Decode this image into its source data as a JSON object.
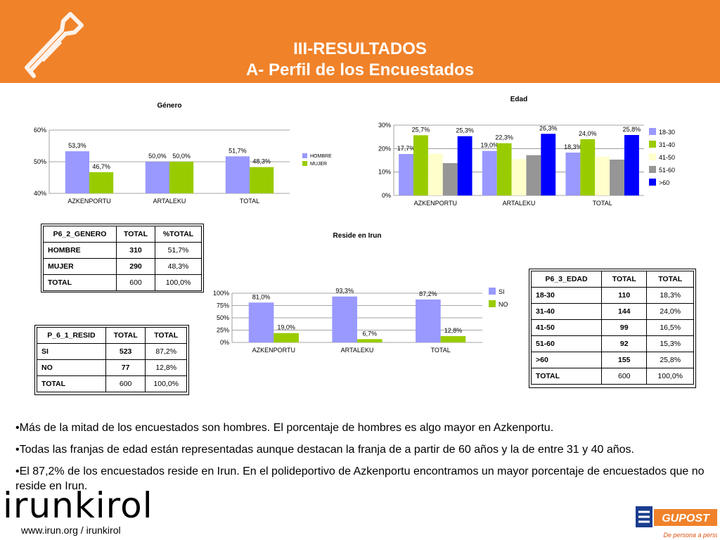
{
  "header": {
    "title_line1": "III-RESULTADOS",
    "title_line2": "A- Perfil de los Encuestados",
    "bg_color": "#f0822a"
  },
  "chart_data": [
    {
      "type": "bar",
      "title": "Género",
      "categories": [
        "AZKENPORTU",
        "ARTALEKU",
        "TOTAL"
      ],
      "series": [
        {
          "name": "HOMBRE",
          "values": [
            53.3,
            50.0,
            51.7
          ],
          "labels": [
            "53,3%",
            "50,0%",
            "51,7%"
          ],
          "color": "#9999ff"
        },
        {
          "name": "MUJER",
          "values": [
            46.7,
            50.0,
            48.3
          ],
          "labels": [
            "46,7%",
            "50,0%",
            "48,3%"
          ],
          "color": "#99cc00"
        }
      ],
      "ylim": [
        40,
        60
      ],
      "yticks": [
        "40%",
        "50%",
        "60%"
      ],
      "grid": true,
      "legend": "right"
    },
    {
      "type": "bar",
      "title": "Edad",
      "categories": [
        "AZKENPORTU",
        "ARTALEKU",
        "TOTAL"
      ],
      "series": [
        {
          "name": "18-30",
          "values": [
            17.7,
            19.0,
            18.3
          ],
          "labels": [
            "17,7%",
            "19,0%",
            "18,3%"
          ],
          "color": "#9999ff"
        },
        {
          "name": "31-40",
          "values": [
            25.7,
            22.3,
            24.0
          ],
          "labels": [
            "25,7%",
            "22,3%",
            "24,0%"
          ],
          "color": "#99cc00"
        },
        {
          "name": "41-50",
          "values": [
            17.8,
            15.5,
            16.5
          ],
          "labels": [
            "",
            "",
            ""
          ],
          "color": "#ffffcc"
        },
        {
          "name": "51-60",
          "values": [
            13.8,
            17.2,
            15.3
          ],
          "labels": [
            "",
            "",
            ""
          ],
          "color": "#969696"
        },
        {
          "name": ">60",
          "values": [
            25.3,
            26.3,
            25.8
          ],
          "labels": [
            "25,3%",
            "26,3%",
            "25,8%"
          ],
          "color": "#0000ff"
        }
      ],
      "ylim": [
        0,
        30
      ],
      "yticks": [
        "0%",
        "10%",
        "20%",
        "30%"
      ],
      "grid": true,
      "legend": "right"
    },
    {
      "type": "bar",
      "title": "Reside en Irun",
      "categories": [
        "AZKENPORTU",
        "ARTALEKU",
        "TOTAL"
      ],
      "series": [
        {
          "name": "SI",
          "values": [
            81.0,
            93.3,
            87.2
          ],
          "labels": [
            "81,0%",
            "93,3%",
            "87,2%"
          ],
          "color": "#9999ff"
        },
        {
          "name": "NO",
          "values": [
            19.0,
            6.7,
            12.8
          ],
          "labels": [
            "19,0%",
            "6,7%",
            "12,8%"
          ],
          "color": "#99cc00"
        }
      ],
      "ylim": [
        0,
        100
      ],
      "yticks": [
        "0%",
        "25%",
        "50%",
        "75%",
        "100%"
      ],
      "grid": true,
      "legend": "right"
    }
  ],
  "tables": {
    "genero": {
      "header": [
        "P6_2_GENERO",
        "TOTAL",
        "%TOTAL"
      ],
      "rows": [
        [
          "HOMBRE",
          "310",
          "51,7%"
        ],
        [
          "MUJER",
          "290",
          "48,3%"
        ],
        [
          "TOTAL",
          "600",
          "100,0%"
        ]
      ]
    },
    "resid": {
      "header": [
        "P_6_1_RESID",
        "TOTAL",
        "TOTAL"
      ],
      "rows": [
        [
          "SI",
          "523",
          "87,2%"
        ],
        [
          "NO",
          "77",
          "12,8%"
        ],
        [
          "TOTAL",
          "600",
          "100,0%"
        ]
      ]
    },
    "edad": {
      "header": [
        "P6_3_EDAD",
        "TOTAL",
        "TOTAL"
      ],
      "rows": [
        [
          "18-30",
          "110",
          "18,3%"
        ],
        [
          "31-40",
          "144",
          "24,0%"
        ],
        [
          "41-50",
          "99",
          "16,5%"
        ],
        [
          "51-60",
          "92",
          "15,3%"
        ],
        [
          ">60",
          "155",
          "25,8%"
        ],
        [
          "TOTAL",
          "600",
          "100,0%"
        ]
      ]
    }
  },
  "bullets": [
    "•Más de la mitad de los encuestados son hombres. El porcentaje de hombres es algo mayor en Azkenportu.",
    "•Todas las franjas de edad están representadas aunque destacan la franja de a partir de 60 años y la de entre 31 y 40 años.",
    "•El 87,2% de los encuestados reside en Irun. En el polideportivo de Azkenportu encontramos un mayor porcentaje de encuestados que no reside en Irun."
  ],
  "footer": {
    "logo_text": "irunkirol",
    "url": "www.irun.org / irunkirol",
    "brand": "GUPOST",
    "brand_tagline": "De persona a persona"
  }
}
